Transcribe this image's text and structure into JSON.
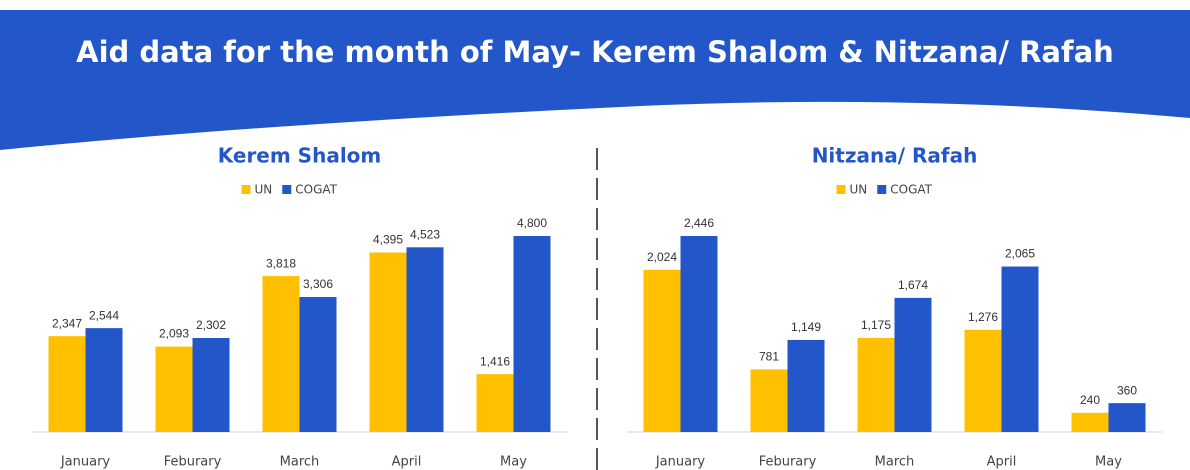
{
  "title": "Aid data for the month of May- Kerem Shalom & Nitzana/ Rafah",
  "chart_data": [
    {
      "type": "bar",
      "title": "Kerem Shalom",
      "categories": [
        "January",
        "Feburary",
        "March",
        "April",
        "May"
      ],
      "series": [
        {
          "name": "UN",
          "color": "#FFC000",
          "values": [
            2347,
            2093,
            3818,
            4395,
            1416
          ],
          "value_labels": [
            "2,347",
            "2,093",
            "3,818",
            "4,395",
            "1,416"
          ]
        },
        {
          "name": "COGAT",
          "color": "#2356C8",
          "values": [
            2544,
            2302,
            3306,
            4523,
            4800
          ],
          "value_labels": [
            "2,544",
            "2,302",
            "3,306",
            "4,523",
            "4,800"
          ]
        }
      ]
    },
    {
      "type": "bar",
      "title": "Nitzana/ Rafah",
      "categories": [
        "January",
        "Feburary",
        "March",
        "April",
        "May"
      ],
      "series": [
        {
          "name": "UN",
          "color": "#FFC000",
          "values": [
            2024,
            781,
            1175,
            1276,
            240
          ],
          "value_labels": [
            "2,024",
            "781",
            "1,175",
            "1,276",
            "240"
          ]
        },
        {
          "name": "COGAT",
          "color": "#2356C8",
          "values": [
            2446,
            1149,
            1674,
            2065,
            360
          ],
          "value_labels": [
            "2,446",
            "1,149",
            "1,674",
            "2,065",
            "360"
          ]
        }
      ]
    }
  ]
}
